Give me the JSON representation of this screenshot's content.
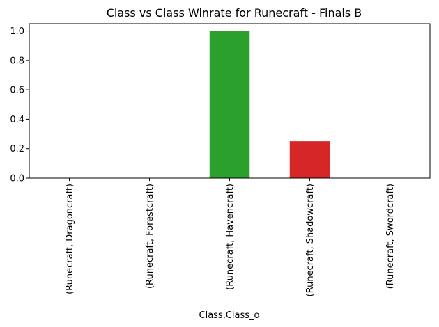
{
  "chart_data": {
    "type": "bar",
    "title": "Class vs Class Winrate for Runecraft - Finals B",
    "xlabel": "Class,Class_o",
    "ylabel": "",
    "categories": [
      "(Runecraft, Dragoncraft)",
      "(Runecraft, Forestcraft)",
      "(Runecraft, Havencraft)",
      "(Runecraft, Shadowcraft)",
      "(Runecraft, Swordcraft)"
    ],
    "values": [
      0.0,
      0.0,
      1.0,
      0.25,
      0.0
    ],
    "colors": [
      "#1f77b4",
      "#ff7f0e",
      "#2ca02c",
      "#d62728",
      "#9467bd"
    ],
    "ylim": [
      0,
      1.05
    ],
    "yticks": [
      "0.0",
      "0.2",
      "0.4",
      "0.6",
      "0.8",
      "1.0"
    ],
    "grid": false,
    "legend": "none"
  }
}
